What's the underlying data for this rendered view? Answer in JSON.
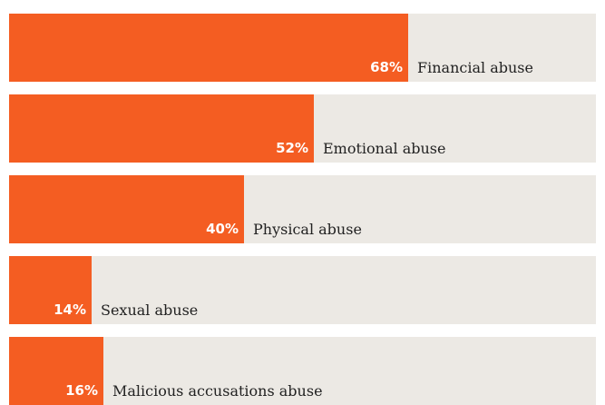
{
  "chart_data": {
    "type": "bar",
    "orientation": "horizontal",
    "categories": [
      "Financial abuse",
      "Emotional abuse",
      "Physical abuse",
      "Sexual abuse",
      "Malicious accusations abuse"
    ],
    "values": [
      68,
      52,
      40,
      14,
      16
    ],
    "value_labels": [
      "68%",
      "52%",
      "40%",
      "14%",
      "16%"
    ],
    "unit": "%",
    "xlim": [
      0,
      100
    ],
    "grid": false,
    "legend": "none",
    "colors": {
      "bar": "#f45d22",
      "track": "#ece9e4",
      "value_text": "#ffffff",
      "label_text": "#222222"
    }
  }
}
